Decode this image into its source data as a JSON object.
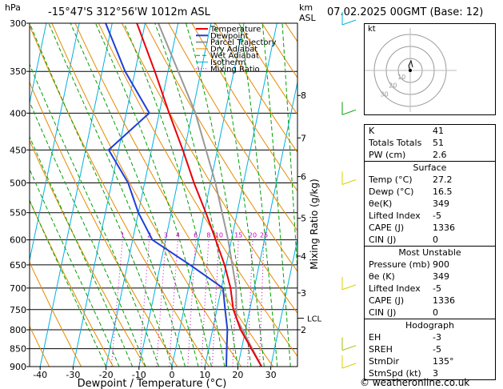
{
  "header": {
    "pressure_unit": "hPa",
    "location": "-15°47'S 312°56'W 1012m ASL",
    "km_label": "km",
    "asl_label": "ASL",
    "datetime": "07.02.2025 00GMT (Base: 12)"
  },
  "footer": "© weatheronline.co.uk",
  "legend": [
    {
      "label": "Temperature",
      "color": "#e8000b"
    },
    {
      "label": "Dewpoint",
      "color": "#1f3fd6"
    },
    {
      "label": "Parcel Trajectory",
      "color": "#999999"
    },
    {
      "label": "Dry Adiabat",
      "color": "#e88a00"
    },
    {
      "label": "Wet Adiabat",
      "color": "#00a000"
    },
    {
      "label": "Isotherm",
      "color": "#00b0e0"
    },
    {
      "label": "Mixing Ratio",
      "color": "#c800c8"
    }
  ],
  "chart_data": {
    "type": "skew-t",
    "xlabel": "Dewpoint / Temperature (°C)",
    "ylabel_right": "Mixing Ratio (g/kg)",
    "x_ticks": [
      -40,
      -30,
      -20,
      -10,
      0,
      10,
      20,
      30
    ],
    "pressure_levels": [
      300,
      350,
      400,
      450,
      500,
      550,
      600,
      650,
      700,
      750,
      800,
      850,
      900
    ],
    "km_ticks": [
      {
        "label": "8",
        "p": 378
      },
      {
        "label": "7",
        "p": 433
      },
      {
        "label": "6",
        "p": 490
      },
      {
        "label": "5",
        "p": 560
      },
      {
        "label": "4",
        "p": 632
      },
      {
        "label": "3",
        "p": 711
      },
      {
        "label": "2",
        "p": 800
      }
    ],
    "lcl": {
      "label": "LCL",
      "p": 771
    },
    "mixing_ratio_labels": [
      "1",
      "2",
      "3",
      "4",
      "6",
      "8",
      "10",
      "15",
      "20",
      "25"
    ],
    "temperature": [
      {
        "p": 900,
        "t": 27.2
      },
      {
        "p": 850,
        "t": 23.0
      },
      {
        "p": 800,
        "t": 18.5
      },
      {
        "p": 750,
        "t": 15.0
      },
      {
        "p": 700,
        "t": 12.8
      },
      {
        "p": 650,
        "t": 9.5
      },
      {
        "p": 600,
        "t": 5.2
      },
      {
        "p": 550,
        "t": 0.5
      },
      {
        "p": 500,
        "t": -5.0
      },
      {
        "p": 450,
        "t": -10.5
      },
      {
        "p": 400,
        "t": -17.0
      },
      {
        "p": 350,
        "t": -24.0
      },
      {
        "p": 300,
        "t": -32.5
      }
    ],
    "dewpoint": [
      {
        "p": 900,
        "t": 16.5
      },
      {
        "p": 850,
        "t": 15.5
      },
      {
        "p": 800,
        "t": 14.5
      },
      {
        "p": 750,
        "t": 12.5
      },
      {
        "p": 700,
        "t": 10.5
      },
      {
        "p": 650,
        "t": -1.0
      },
      {
        "p": 600,
        "t": -14.0
      },
      {
        "p": 550,
        "t": -20.0
      },
      {
        "p": 500,
        "t": -25.0
      },
      {
        "p": 450,
        "t": -33.0
      },
      {
        "p": 400,
        "t": -23.0
      },
      {
        "p": 350,
        "t": -33.0
      },
      {
        "p": 300,
        "t": -42.0
      }
    ],
    "parcel": [
      {
        "p": 900,
        "t": 27.2
      },
      {
        "p": 771,
        "t": 16.5
      },
      {
        "p": 700,
        "t": 14.5
      },
      {
        "p": 600,
        "t": 9.0
      },
      {
        "p": 500,
        "t": 1.5
      },
      {
        "p": 400,
        "t": -9.0
      },
      {
        "p": 300,
        "t": -26.0
      }
    ]
  },
  "hodograph": {
    "label": "kt",
    "ring_labels": [
      "10",
      "20",
      "30"
    ]
  },
  "indices": [
    {
      "k": "K",
      "v": "41"
    },
    {
      "k": "Totals Totals",
      "v": "51"
    },
    {
      "k": "PW (cm)",
      "v": "2.6"
    }
  ],
  "surface": {
    "title": "Surface",
    "rows": [
      {
        "k": "Temp (°C)",
        "v": "27.2"
      },
      {
        "k": "Dewp (°C)",
        "v": "16.5"
      },
      {
        "k": "θe(K)",
        "v": "349"
      },
      {
        "k": "Lifted Index",
        "v": "-5"
      },
      {
        "k": "CAPE (J)",
        "v": "1336"
      },
      {
        "k": "CIN (J)",
        "v": "0"
      }
    ]
  },
  "most_unstable": {
    "title": "Most Unstable",
    "rows": [
      {
        "k": "Pressure (mb)",
        "v": "900"
      },
      {
        "k": "θe (K)",
        "v": "349"
      },
      {
        "k": "Lifted Index",
        "v": "-5"
      },
      {
        "k": "CAPE (J)",
        "v": "1336"
      },
      {
        "k": "CIN (J)",
        "v": "0"
      }
    ]
  },
  "hodograph_table": {
    "title": "Hodograph",
    "rows": [
      {
        "k": "EH",
        "v": "-3"
      },
      {
        "k": "SREH",
        "v": "-5"
      },
      {
        "k": "StmDir",
        "v": "135°"
      },
      {
        "k": "StmSpd (kt)",
        "v": "3"
      }
    ]
  }
}
